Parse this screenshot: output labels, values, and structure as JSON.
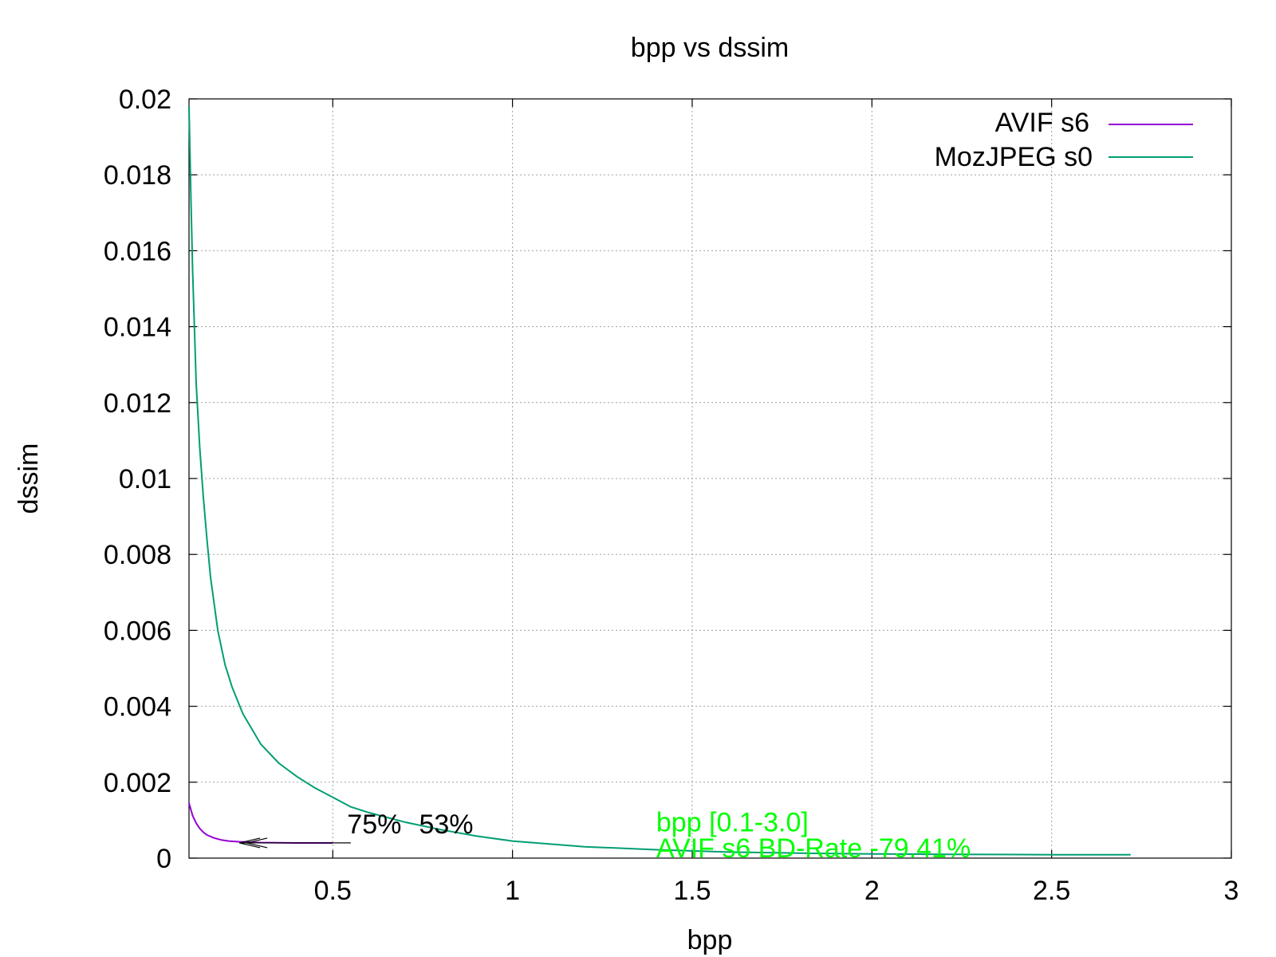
{
  "chart_data": {
    "type": "line",
    "title": "bpp vs dssim",
    "xlabel": "bpp",
    "ylabel": "dssim",
    "xlim": [
      0.1,
      3
    ],
    "ylim": [
      0,
      0.02
    ],
    "grid": true,
    "legend_position": "top-right",
    "x_ticks": [
      {
        "value": 0.5,
        "label": "0.5"
      },
      {
        "value": 1,
        "label": "1"
      },
      {
        "value": 1.5,
        "label": "1.5"
      },
      {
        "value": 2,
        "label": "2"
      },
      {
        "value": 2.5,
        "label": "2.5"
      },
      {
        "value": 3,
        "label": "3"
      }
    ],
    "y_ticks": [
      {
        "value": 0,
        "label": "0"
      },
      {
        "value": 0.002,
        "label": "0.002"
      },
      {
        "value": 0.004,
        "label": "0.004"
      },
      {
        "value": 0.006,
        "label": "0.006"
      },
      {
        "value": 0.008,
        "label": "0.008"
      },
      {
        "value": 0.01,
        "label": "0.01"
      },
      {
        "value": 0.012,
        "label": "0.012"
      },
      {
        "value": 0.014,
        "label": "0.014"
      },
      {
        "value": 0.016,
        "label": "0.016"
      },
      {
        "value": 0.018,
        "label": "0.018"
      },
      {
        "value": 0.02,
        "label": "0.02"
      }
    ],
    "series": [
      {
        "name": "AVIF s6",
        "color": "#9400d3",
        "points": [
          [
            0.1,
            0.00145
          ],
          [
            0.11,
            0.00112
          ],
          [
            0.12,
            0.00092
          ],
          [
            0.13,
            0.00078
          ],
          [
            0.14,
            0.00068
          ],
          [
            0.15,
            0.00061
          ],
          [
            0.17,
            0.00053
          ],
          [
            0.19,
            0.00048
          ],
          [
            0.21,
            0.00045
          ],
          [
            0.24,
            0.00043
          ],
          [
            0.3,
            0.00041
          ],
          [
            0.4,
            0.0004
          ],
          [
            0.5,
            0.0004
          ]
        ]
      },
      {
        "name": "MozJPEG s0",
        "color": "#009e73",
        "points": [
          [
            0.1,
            0.0198
          ],
          [
            0.105,
            0.0175
          ],
          [
            0.11,
            0.0155
          ],
          [
            0.12,
            0.0125
          ],
          [
            0.13,
            0.0108
          ],
          [
            0.14,
            0.0095
          ],
          [
            0.15,
            0.0084
          ],
          [
            0.16,
            0.0074
          ],
          [
            0.18,
            0.006
          ],
          [
            0.2,
            0.0051
          ],
          [
            0.22,
            0.0045
          ],
          [
            0.25,
            0.0038
          ],
          [
            0.3,
            0.003
          ],
          [
            0.35,
            0.0025
          ],
          [
            0.4,
            0.00215
          ],
          [
            0.45,
            0.00185
          ],
          [
            0.5,
            0.0016
          ],
          [
            0.55,
            0.00135
          ],
          [
            0.6,
            0.0012
          ],
          [
            0.7,
            0.00095
          ],
          [
            0.8,
            0.00075
          ],
          [
            0.9,
            0.00058
          ],
          [
            1,
            0.00045
          ],
          [
            1.2,
            0.0003
          ],
          [
            1.4,
            0.00022
          ],
          [
            1.6,
            0.00016
          ],
          [
            1.8,
            0.00013
          ],
          [
            2,
            0.00011
          ],
          [
            2.2,
            0.0001
          ],
          [
            2.5,
            9e-05
          ],
          [
            2.72,
            9e-05
          ]
        ]
      }
    ],
    "annotations": {
      "arrows": [
        {
          "from": [
            0.55,
            0.0004
          ],
          "to": [
            0.26,
            0.0004
          ]
        },
        {
          "from": [
            0.55,
            0.0004
          ],
          "to": [
            0.24,
            0.0004
          ]
        }
      ],
      "pct_label_1": {
        "text": "75%",
        "x": 0.54,
        "y": 0.00065
      },
      "pct_label_2": {
        "text": "53%",
        "x": 0.74,
        "y": 0.00065
      },
      "range_note": {
        "text": "bpp [0.1-3.0]",
        "x": 1.4,
        "y": 0.0007,
        "color": "#00ff00"
      },
      "bdrate_note": {
        "text": "AVIF s6 BD-Rate -79.41%",
        "x": 1.4,
        "y": 2e-05,
        "color": "#00ff00"
      }
    }
  }
}
